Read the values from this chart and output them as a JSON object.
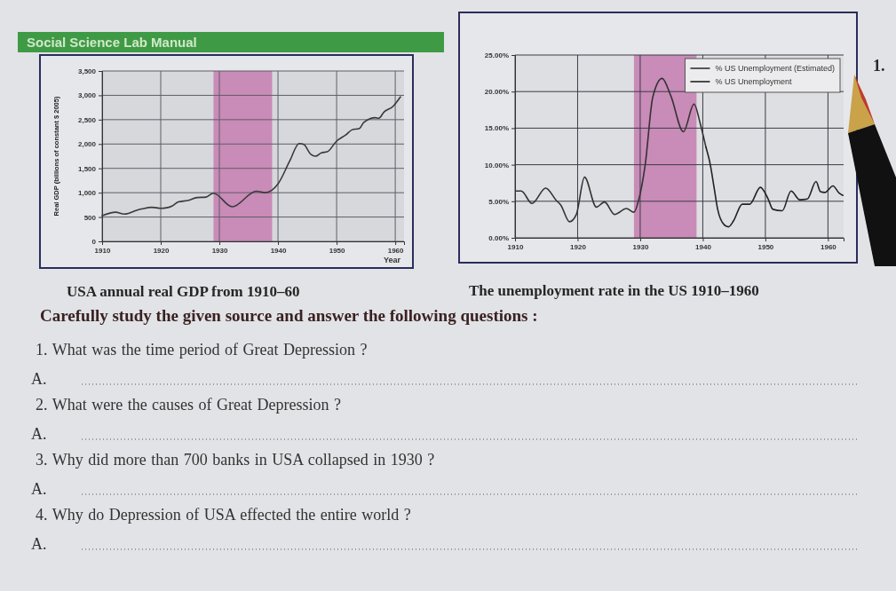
{
  "chart_data": [
    {
      "type": "line",
      "title": "USA annual real GDP from 1910–60",
      "xlabel": "Year",
      "ylabel": "Real GDP (billions of constant $ 2005)",
      "x": [
        1910,
        1912.3,
        1913.8,
        1914.6,
        1915.9,
        1916.9,
        1918.5,
        1920,
        1921,
        1922,
        1923,
        1924.6,
        1926.2,
        1927.7,
        1929,
        1932.2,
        1936.3,
        1937.8,
        1940,
        1942,
        1943.6,
        1944.4,
        1945.6,
        1946.4,
        1947.4,
        1948.4,
        1950,
        1951.6,
        1952.6,
        1953.9,
        1954.6,
        1956.6,
        1957.2,
        1958.1,
        1959.6,
        1960.9
      ],
      "series": [
        {
          "color": "#3a3a3a",
          "values": [
            530,
            600,
            560,
            580,
            640,
            670,
            700,
            680,
            690,
            730,
            810,
            840,
            900,
            910,
            990,
            710,
            1030,
            1000,
            1180,
            1650,
            2010,
            1990,
            1790,
            1750,
            1820,
            1840,
            2060,
            2190,
            2290,
            2320,
            2440,
            2540,
            2530,
            2660,
            2770,
            2970
          ]
        }
      ],
      "xlim": [
        1910,
        1961.5
      ],
      "xticks": [
        1910,
        1920,
        1930,
        1940,
        1950,
        1960
      ],
      "ylim": [
        0,
        3500
      ],
      "yticks": [
        0,
        500,
        {
          "value": 1000,
          "label": "1,000"
        },
        {
          "value": 1500,
          "label": "1,500"
        },
        {
          "value": 2000,
          "label": "2,000"
        },
        {
          "value": 2500,
          "label": "2,500"
        },
        {
          "value": 3000,
          "label": "3,000"
        },
        {
          "value": 3500,
          "label": "3,500"
        }
      ],
      "grid": true,
      "bands": [
        {
          "axis": "x",
          "from": 1929,
          "to": 1939,
          "color": "#c98bb8"
        }
      ],
      "annotations": [
        "Social Science Lab Manual"
      ]
    },
    {
      "type": "line",
      "title": "The unemployment rate in the US 1910–1960",
      "series": [
        {
          "name": "% US Unemployment (Estimated)",
          "color": "#333333",
          "x": [
            1910.2,
            1911,
            1912.7,
            1914.9,
            1916.6,
            1917.3,
            1918.7,
            1919.8,
            1921.1,
            1923,
            1924.3,
            1925.9,
            1927.8,
            1929,
            1929.7,
            1930.8,
            1932,
            1933.5,
            1934.9,
            1936.9,
            1938.6,
            1939.6,
            1940.5
          ],
          "values": [
            6.4,
            6.4,
            4.7,
            6.8,
            5.1,
            4.5,
            2.2,
            3.2,
            8.3,
            4.2,
            4.9,
            3.2,
            4.0,
            3.5,
            5.0,
            10.0,
            19.2,
            21.8,
            19.4,
            14.5,
            18.3,
            15.6,
            12.4
          ]
        },
        {
          "name": "% US Unemployment",
          "color": "#222222",
          "x": [
            1940.5,
            1941.2,
            1941.8,
            1942.4,
            1943.4,
            1944.1,
            1944.9,
            1946.3,
            1947.5,
            1949.2,
            1950.4,
            1951.2,
            1952.7,
            1954.1,
            1955.5,
            1956.7,
            1958.1,
            1958.8,
            1959.5,
            1960.8,
            1961.8,
            1962.4
          ],
          "values": [
            12.4,
            10.0,
            6.9,
            3.8,
            1.8,
            1.5,
            2.3,
            4.6,
            4.6,
            6.9,
            5.4,
            3.9,
            3.7,
            6.4,
            5.2,
            5.3,
            7.7,
            6.3,
            6.2,
            7.1,
            6.1,
            5.8
          ]
        }
      ],
      "xlim": [
        1910,
        1962.5
      ],
      "xticks": [
        1910,
        1920,
        1930,
        1940,
        1950,
        1960
      ],
      "ylim": [
        0,
        25
      ],
      "yticks": [
        {
          "value": 0,
          "label": "0.00%"
        },
        {
          "value": 5,
          "label": "5.00%"
        },
        {
          "value": 10,
          "label": "10.00%"
        },
        {
          "value": 15,
          "label": "15.00%"
        },
        {
          "value": 20,
          "label": "20.00%"
        },
        {
          "value": 25,
          "label": "25.00%"
        }
      ],
      "grid": true,
      "legend": "top right",
      "bands": [
        {
          "axis": "x",
          "from": 1929,
          "to": 1939,
          "color": "#c98bb8"
        }
      ],
      "annotations": [
        "1."
      ]
    },
    {
      "type": "other",
      "title": "Carefully study the given source and answer the following questions :",
      "annotations": [
        "1. What was the time period of Great Depression ?",
        "A.",
        "2. What were the causes of Great Depression ?",
        "A.",
        "3. Why did more than 700 banks in USA collapsed in 1930 ?",
        "A.",
        "4. Why do Depression of USA effected the entire world ?",
        "A."
      ]
    }
  ]
}
